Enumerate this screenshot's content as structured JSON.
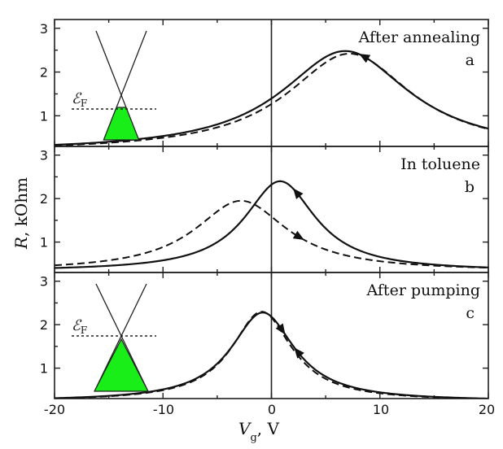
{
  "chart_data": {
    "type": "line",
    "xlabel_main": "V",
    "xlabel_sub": "g",
    "xlabel_unit": ", V",
    "ylabel_italic": "R",
    "ylabel_rest": ", kOhm",
    "xlim": [
      -20,
      20
    ],
    "x_ticks": [
      "-20",
      "-10",
      "0",
      "10",
      "20"
    ],
    "y_ticks": [
      "1",
      "2",
      "3"
    ],
    "fermi_label": "ℰ",
    "fermi_sub": "F",
    "panels": [
      {
        "title": "After annealing",
        "letter": "a",
        "ylim": [
          0.3,
          3.2
        ],
        "inset": {
          "fermi_level": "above_dirac"
        },
        "series": [
          {
            "style": "solid",
            "peak_x": 6.8,
            "peak_y": 2.48,
            "width": 7.2,
            "baseline": 0.18
          },
          {
            "style": "dashed",
            "peak_x": 7.2,
            "peak_y": 2.42,
            "width": 7.0,
            "baseline": 0.18
          }
        ],
        "arrows": [
          {
            "x": 8.5,
            "direction": "toward_negative"
          }
        ]
      },
      {
        "title": "In  toluene",
        "letter": "b",
        "ylim": [
          0.3,
          3.2
        ],
        "series": [
          {
            "style": "solid",
            "peak_x": 0.8,
            "peak_y": 2.4,
            "width": 4.0,
            "baseline": 0.33
          },
          {
            "style": "dashed",
            "peak_x": -2.8,
            "peak_y": 1.95,
            "width": 5.2,
            "baseline": 0.33
          }
        ],
        "arrows": [
          {
            "x": 2.3,
            "direction": "toward_negative"
          },
          {
            "x": 2.6,
            "direction": "toward_positive"
          }
        ]
      },
      {
        "title": "After pumping",
        "letter": "c",
        "ylim": [
          0.3,
          3.2
        ],
        "inset": {
          "fermi_level": "above_dirac_high"
        },
        "series": [
          {
            "style": "solid",
            "peak_x": -0.8,
            "peak_y": 2.28,
            "width": 3.6,
            "baseline": 0.24
          },
          {
            "style": "dashed",
            "peak_x": -0.9,
            "peak_y": 2.3,
            "width": 3.4,
            "baseline": 0.24
          }
        ],
        "arrows": [
          {
            "x": 1.0,
            "direction": "toward_positive"
          },
          {
            "x": 2.4,
            "direction": "toward_negative"
          }
        ]
      }
    ]
  }
}
